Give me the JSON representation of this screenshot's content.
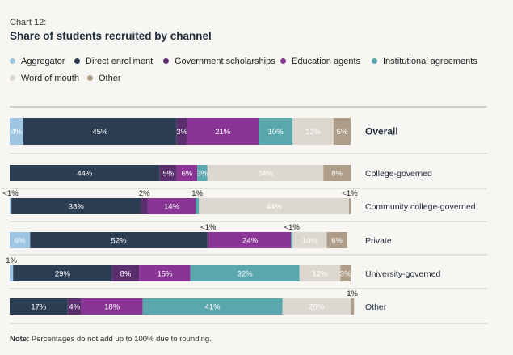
{
  "chart_label": "Chart 12:",
  "chart_title": "Share of students recruited by channel",
  "note_prefix": "Note:",
  "note_text": "Percentages do not add up to 100% due to rounding.",
  "colors": {
    "Aggregator": "#9ec5e3",
    "Direct enrollment": "#2c3e54",
    "Government scholarships": "#5b2f6e",
    "Education agents": "#8a3596",
    "Institutional agreements": "#5ba7ae",
    "Word of mouth": "#dcd8cf",
    "Other": "#ae9e89"
  },
  "chart_data": {
    "type": "bar",
    "orientation": "horizontal",
    "stacked": true,
    "title": "Share of students recruited by channel",
    "unit": "%",
    "legend_position": "top",
    "categories": [
      "Overall",
      "College-governed",
      "Community college-governed",
      "Private",
      "University-governed",
      "Other"
    ],
    "series": [
      {
        "name": "Aggregator",
        "values": [
          4,
          0,
          0.5,
          6,
          1,
          0
        ],
        "labels": [
          "4%",
          "",
          "<1%",
          "6%",
          "1%",
          ""
        ]
      },
      {
        "name": "Direct enrollment",
        "values": [
          45,
          44,
          38,
          52,
          29,
          17
        ],
        "labels": [
          "45%",
          "44%",
          "38%",
          "52%",
          "29%",
          "17%"
        ]
      },
      {
        "name": "Government scholarships",
        "values": [
          3,
          5,
          2,
          0.5,
          8,
          4
        ],
        "labels": [
          "3%",
          "5%",
          "2%",
          "<1%",
          "8%",
          "4%"
        ]
      },
      {
        "name": "Education agents",
        "values": [
          21,
          6,
          14,
          24,
          15,
          18
        ],
        "labels": [
          "21%",
          "6%",
          "14%",
          "24%",
          "15%",
          "18%"
        ]
      },
      {
        "name": "Institutional agreements",
        "values": [
          10,
          3,
          1,
          0.5,
          32,
          41
        ],
        "labels": [
          "10%",
          "3%",
          "1%",
          "<1%",
          "32%",
          "41%"
        ]
      },
      {
        "name": "Word of mouth",
        "values": [
          12,
          34,
          44,
          10,
          12,
          20
        ],
        "labels": [
          "12%",
          "34%",
          "44%",
          "10%",
          "12%",
          "20%"
        ]
      },
      {
        "name": "Other",
        "values": [
          5,
          8,
          0.5,
          6,
          3,
          1
        ],
        "labels": [
          "5%",
          "8%",
          "<1%",
          "6%",
          "3%",
          "1%"
        ]
      }
    ],
    "xlim": [
      0,
      100
    ]
  }
}
